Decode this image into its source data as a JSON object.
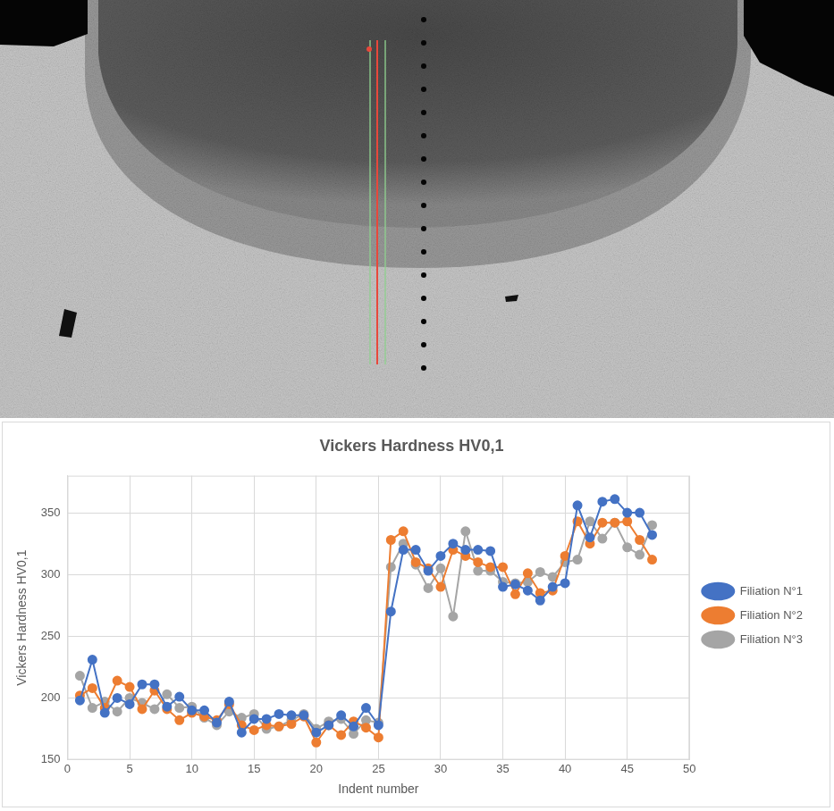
{
  "chart_data": {
    "type": "line",
    "title": "Vickers Hardness HV0,1",
    "x_label": "Indent number",
    "y_label": "Vickers Hardness HV0,1",
    "x": [
      1,
      2,
      3,
      4,
      5,
      6,
      7,
      8,
      9,
      10,
      11,
      12,
      13,
      14,
      15,
      16,
      17,
      18,
      19,
      20,
      21,
      22,
      23,
      24,
      25,
      26,
      27,
      28,
      29,
      30,
      31,
      32,
      33,
      34,
      35,
      36,
      37,
      38,
      39,
      40,
      41,
      42,
      43,
      44,
      45,
      46,
      47
    ],
    "series": [
      {
        "name": "Filiation N°1",
        "color": "#4472c4",
        "values": [
          198,
          231,
          188,
          200,
          195,
          211,
          211,
          193,
          201,
          190,
          190,
          180,
          197,
          172,
          183,
          183,
          187,
          186,
          186,
          172,
          178,
          186,
          177,
          192,
          178,
          270,
          320,
          320,
          303,
          315,
          325,
          320,
          320,
          319,
          290,
          292,
          287,
          279,
          290,
          293,
          356,
          330,
          359,
          361,
          350,
          350,
          332
        ]
      },
      {
        "name": "Filiation N°2",
        "color": "#ed7d31",
        "values": [
          202,
          208,
          192,
          214,
          209,
          191,
          206,
          191,
          182,
          188,
          185,
          182,
          195,
          178,
          174,
          178,
          177,
          179,
          185,
          164,
          178,
          170,
          181,
          176,
          168,
          328,
          335,
          310,
          305,
          290,
          320,
          315,
          310,
          306,
          306,
          284,
          301,
          285,
          287,
          315,
          343,
          325,
          342,
          342,
          343,
          328,
          312
        ]
      },
      {
        "name": "Filiation N°3",
        "color": "#a5a5a5",
        "values": [
          218,
          192,
          197,
          189,
          200,
          196,
          191,
          203,
          192,
          193,
          184,
          178,
          189,
          184,
          187,
          175,
          177,
          182,
          187,
          175,
          181,
          183,
          171,
          182,
          180,
          306,
          325,
          308,
          289,
          305,
          266,
          335,
          303,
          303,
          294,
          293,
          294,
          302,
          298,
          310,
          312,
          343,
          329,
          342,
          322,
          316,
          340
        ]
      }
    ],
    "xlim": [
      0,
      50
    ],
    "xticks": [
      0,
      5,
      10,
      15,
      20,
      25,
      30,
      35,
      40,
      45,
      50
    ],
    "ylim": [
      150,
      380
    ],
    "yticks": [
      150,
      200,
      250,
      300,
      350
    ],
    "grid": true,
    "legend": "right",
    "marker": "circle"
  }
}
